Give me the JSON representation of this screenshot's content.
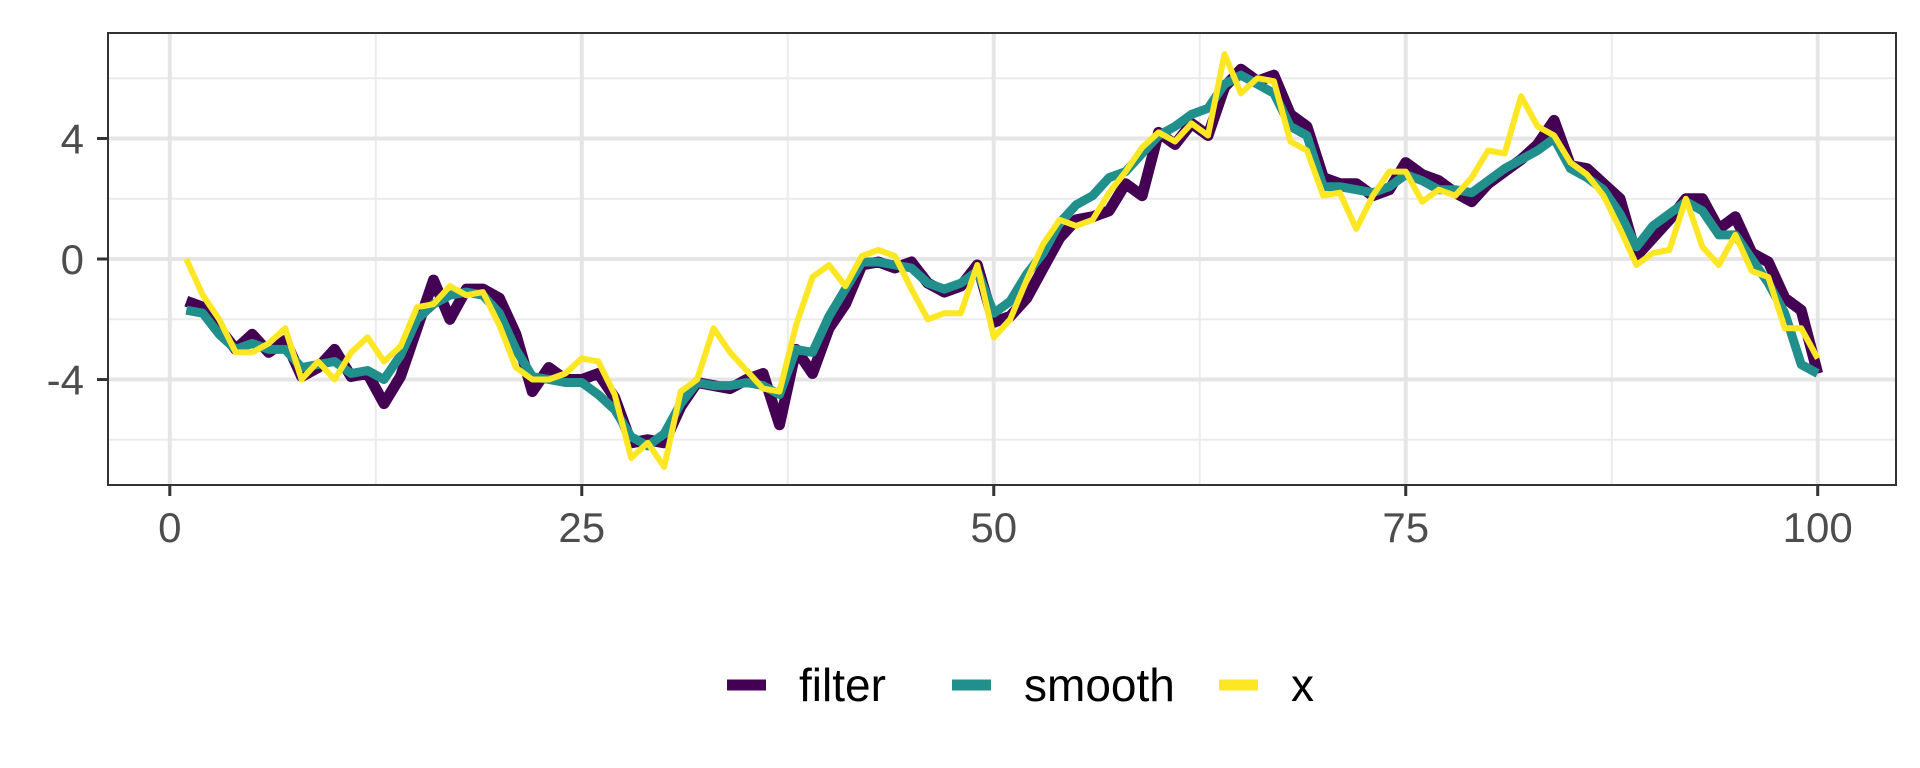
{
  "chart_data": {
    "type": "line",
    "x_ticks": [
      0,
      25,
      50,
      75,
      100
    ],
    "y_ticks": [
      -4,
      0,
      4
    ],
    "y_tick_labels": [
      "-4",
      "0",
      "4"
    ],
    "xlim": [
      -3.75,
      104.75
    ],
    "ylim": [
      -7.5,
      7.5
    ],
    "grid": true,
    "legend_position": "bottom",
    "x": [
      1,
      2,
      3,
      4,
      5,
      6,
      7,
      8,
      9,
      10,
      11,
      12,
      13,
      14,
      15,
      16,
      17,
      18,
      19,
      20,
      21,
      22,
      23,
      24,
      25,
      26,
      27,
      28,
      29,
      30,
      31,
      32,
      33,
      34,
      35,
      36,
      37,
      38,
      39,
      40,
      41,
      42,
      43,
      44,
      45,
      46,
      47,
      48,
      49,
      50,
      51,
      52,
      53,
      54,
      55,
      56,
      57,
      58,
      59,
      60,
      61,
      62,
      63,
      64,
      65,
      66,
      67,
      68,
      69,
      70,
      71,
      72,
      73,
      74,
      75,
      76,
      77,
      78,
      79,
      80,
      81,
      82,
      83,
      84,
      85,
      86,
      87,
      88,
      89,
      90,
      91,
      92,
      93,
      94,
      95,
      96,
      97,
      98,
      99,
      100
    ],
    "series": [
      {
        "name": "filter",
        "color": "#440154",
        "values": [
          -1.4,
          -1.6,
          -2.3,
          -3.0,
          -2.5,
          -3.1,
          -2.7,
          -3.9,
          -3.6,
          -3.0,
          -3.9,
          -3.8,
          -4.8,
          -3.9,
          -2.3,
          -0.7,
          -2.0,
          -1.0,
          -1.0,
          -1.3,
          -2.5,
          -4.4,
          -3.6,
          -4.0,
          -4.0,
          -3.8,
          -4.6,
          -6.1,
          -6.0,
          -6.1,
          -4.9,
          -4.1,
          -4.2,
          -4.3,
          -4.0,
          -3.8,
          -5.5,
          -3.0,
          -3.8,
          -2.3,
          -1.5,
          -0.2,
          -0.1,
          -0.3,
          -0.1,
          -0.8,
          -1.1,
          -0.9,
          -0.2,
          -2.1,
          -1.9,
          -1.3,
          -0.3,
          0.7,
          1.3,
          1.4,
          1.6,
          2.5,
          2.1,
          4.2,
          3.8,
          4.5,
          4.1,
          5.7,
          6.3,
          5.9,
          6.1,
          4.8,
          4.4,
          2.7,
          2.5,
          2.5,
          2.1,
          2.3,
          3.2,
          2.8,
          2.6,
          2.2,
          1.9,
          2.5,
          2.9,
          3.3,
          3.8,
          4.6,
          3.1,
          3.0,
          2.5,
          2.0,
          0.1,
          0.7,
          1.3,
          2.0,
          2.0,
          1.0,
          1.4,
          0.2,
          -0.1,
          -1.3,
          -1.7,
          -3.8
        ]
      },
      {
        "name": "smooth",
        "color": "#21908C",
        "values": [
          -1.7,
          -1.8,
          -2.5,
          -3.0,
          -2.8,
          -3.0,
          -3.0,
          -3.6,
          -3.5,
          -3.4,
          -3.8,
          -3.7,
          -4.0,
          -3.2,
          -2.0,
          -1.5,
          -1.2,
          -1.1,
          -1.2,
          -1.8,
          -3.0,
          -3.9,
          -4.0,
          -4.1,
          -4.1,
          -4.5,
          -5.0,
          -5.9,
          -6.2,
          -5.8,
          -4.8,
          -4.1,
          -4.2,
          -4.2,
          -4.1,
          -4.2,
          -4.5,
          -3.0,
          -3.1,
          -1.9,
          -1.0,
          -0.1,
          -0.1,
          -0.2,
          -0.3,
          -0.8,
          -1.0,
          -0.8,
          -0.4,
          -1.8,
          -1.4,
          -0.5,
          0.2,
          1.2,
          1.8,
          2.1,
          2.7,
          2.9,
          3.5,
          4.1,
          4.4,
          4.8,
          5.0,
          5.8,
          6.1,
          5.8,
          5.5,
          4.4,
          4.1,
          2.4,
          2.4,
          2.3,
          2.2,
          2.4,
          2.8,
          2.6,
          2.3,
          2.3,
          2.2,
          2.6,
          3.0,
          3.3,
          3.6,
          4.0,
          3.0,
          2.7,
          2.3,
          1.5,
          0.4,
          1.1,
          1.5,
          1.9,
          1.6,
          0.8,
          0.8,
          0.0,
          -0.8,
          -1.8,
          -3.5,
          -3.8
        ]
      },
      {
        "name": "x",
        "color": "#FDE725",
        "values": [
          0.0,
          -1.2,
          -2.0,
          -3.1,
          -3.1,
          -2.8,
          -2.3,
          -4.0,
          -3.4,
          -4.0,
          -3.1,
          -2.6,
          -3.4,
          -2.9,
          -1.6,
          -1.5,
          -0.9,
          -1.2,
          -1.1,
          -2.2,
          -3.6,
          -4.0,
          -4.0,
          -3.8,
          -3.3,
          -3.4,
          -4.5,
          -6.6,
          -6.1,
          -6.9,
          -4.4,
          -4.0,
          -2.3,
          -3.1,
          -3.7,
          -4.3,
          -4.4,
          -2.2,
          -0.6,
          -0.2,
          -0.9,
          0.1,
          0.3,
          0.1,
          -1.0,
          -2.0,
          -1.8,
          -1.8,
          -0.2,
          -2.6,
          -2.0,
          -0.7,
          0.5,
          1.3,
          1.1,
          1.3,
          2.2,
          2.9,
          3.7,
          4.2,
          3.9,
          4.5,
          4.1,
          6.8,
          5.5,
          6.0,
          5.9,
          3.9,
          3.6,
          2.1,
          2.2,
          1.0,
          2.1,
          2.9,
          2.9,
          1.9,
          2.3,
          2.1,
          2.7,
          3.6,
          3.5,
          5.4,
          4.4,
          4.1,
          3.2,
          2.8,
          2.1,
          1.0,
          -0.2,
          0.2,
          0.3,
          2.0,
          0.4,
          -0.2,
          0.8,
          -0.4,
          -0.6,
          -2.3,
          -2.3,
          -3.3
        ]
      }
    ]
  }
}
